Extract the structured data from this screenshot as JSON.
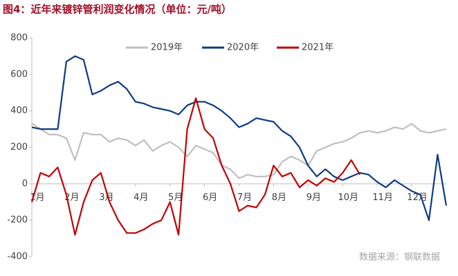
{
  "chart_data": {
    "type": "line",
    "title": "图4：近年来镀锌管利润变化情况（单位：元/吨）",
    "source": "数据来源：钢联数据",
    "x": [
      0,
      0.25,
      0.5,
      0.75,
      1,
      1.25,
      1.5,
      1.75,
      2,
      2.25,
      2.5,
      2.75,
      3,
      3.25,
      3.5,
      3.75,
      4,
      4.25,
      4.5,
      4.75,
      5,
      5.25,
      5.5,
      5.75,
      6,
      6.25,
      6.5,
      6.75,
      7,
      7.25,
      7.5,
      7.75,
      8,
      8.25,
      8.5,
      8.75,
      9,
      9.25,
      9.5,
      9.75,
      10,
      10.25,
      10.5,
      10.75,
      11,
      11.25,
      11.5,
      11.75,
      12
    ],
    "xlim": [
      0,
      12
    ],
    "xticks": [
      {
        "value": 0,
        "label": "1月"
      },
      {
        "value": 1,
        "label": "2月"
      },
      {
        "value": 2,
        "label": "3月"
      },
      {
        "value": 3,
        "label": "4月"
      },
      {
        "value": 4,
        "label": "5月"
      },
      {
        "value": 5,
        "label": "6月"
      },
      {
        "value": 6,
        "label": "7月"
      },
      {
        "value": 7,
        "label": "8月"
      },
      {
        "value": 8,
        "label": "9月"
      },
      {
        "value": 9,
        "label": "10月"
      },
      {
        "value": 10,
        "label": "11月"
      },
      {
        "value": 11,
        "label": "12月"
      }
    ],
    "ylim": [
      -400,
      800
    ],
    "yticks": [
      -400,
      -200,
      0,
      200,
      400,
      600,
      800
    ],
    "legend": "top",
    "series": [
      {
        "name": "2019年",
        "color": "#bfbfbf",
        "values": [
          330,
          300,
          270,
          270,
          250,
          130,
          280,
          270,
          270,
          230,
          250,
          240,
          210,
          240,
          180,
          210,
          230,
          200,
          150,
          210,
          190,
          170,
          100,
          80,
          30,
          50,
          40,
          40,
          50,
          120,
          150,
          130,
          100,
          180,
          200,
          220,
          230,
          250,
          280,
          290,
          280,
          290,
          310,
          300,
          330,
          290,
          280,
          290,
          300
        ]
      },
      {
        "name": "2020年",
        "color": "#0d3a82",
        "values": [
          310,
          300,
          300,
          300,
          670,
          700,
          680,
          490,
          510,
          540,
          560,
          520,
          450,
          440,
          420,
          410,
          400,
          380,
          430,
          450,
          450,
          430,
          400,
          360,
          310,
          330,
          360,
          350,
          340,
          290,
          260,
          200,
          100,
          40,
          80,
          40,
          20,
          40,
          60,
          50,
          10,
          -20,
          20,
          -10,
          -40,
          -60,
          -200,
          160,
          -120
        ]
      },
      {
        "name": "2021年",
        "color": "#c00000",
        "values": [
          -100,
          60,
          40,
          90,
          -60,
          -280,
          -100,
          20,
          60,
          -100,
          -200,
          -270,
          -270,
          -250,
          -220,
          -200,
          -100,
          -280,
          300,
          470,
          300,
          250,
          100,
          0,
          -150,
          -120,
          -130,
          -60,
          100,
          40,
          60,
          -20,
          20,
          -10,
          30,
          10,
          60,
          130,
          50,
          null,
          null,
          null,
          null,
          null,
          null,
          null,
          null,
          null,
          null
        ]
      }
    ]
  }
}
